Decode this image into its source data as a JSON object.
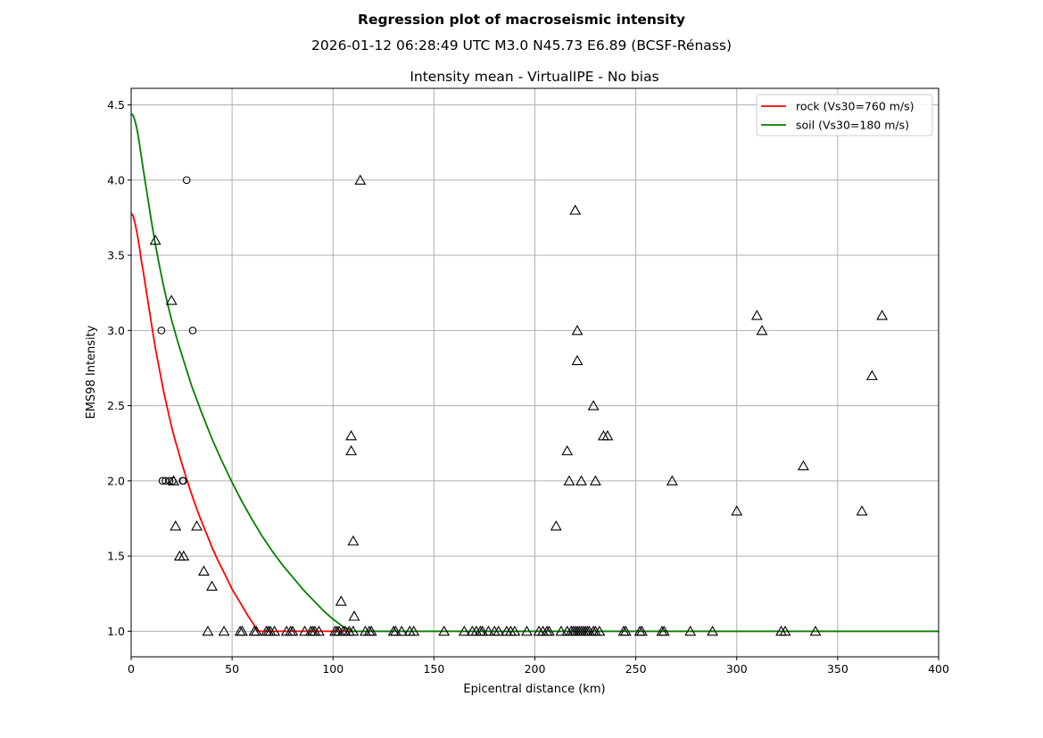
{
  "header": {
    "title": "Regression plot of macroseismic intensity",
    "subtitle": "2026-01-12 06:28:49 UTC M3.0 N45.73 E6.89 (BCSF-Rénass)"
  },
  "chart_data": {
    "type": "scatter",
    "title": "Intensity mean - VirtualIPE - No bias",
    "xlabel": "Epicentral distance (km)",
    "ylabel": "EMS98 Intensity",
    "xlim": [
      0,
      400
    ],
    "ylim": [
      0.83,
      4.61
    ],
    "xticks": [
      "0",
      "50",
      "100",
      "150",
      "200",
      "250",
      "300",
      "350",
      "400"
    ],
    "yticks": [
      "1.0",
      "1.5",
      "2.0",
      "2.5",
      "3.0",
      "3.5",
      "4.0",
      "4.5"
    ],
    "grid": true,
    "legend_position": "top-right",
    "series": [
      {
        "name": "rock (Vs30=760 m/s)",
        "kind": "line",
        "color": "#ff0000",
        "x": [
          0,
          1,
          2,
          3,
          4,
          5,
          6,
          8,
          10,
          12,
          14,
          16,
          18,
          20,
          22,
          25,
          28,
          31,
          34,
          37,
          40,
          43,
          46,
          50,
          54,
          58,
          62,
          63,
          70,
          100,
          200,
          300,
          400
        ],
        "y": [
          3.78,
          3.76,
          3.71,
          3.64,
          3.56,
          3.47,
          3.39,
          3.22,
          3.05,
          2.88,
          2.74,
          2.6,
          2.48,
          2.36,
          2.26,
          2.12,
          1.99,
          1.87,
          1.76,
          1.66,
          1.56,
          1.47,
          1.39,
          1.28,
          1.19,
          1.1,
          1.02,
          1.0,
          1.0,
          1.0,
          1.0,
          1.0,
          1.0
        ]
      },
      {
        "name": "soil (Vs30=180 m/s)",
        "kind": "line",
        "color": "#008000",
        "x": [
          0,
          1,
          2,
          3,
          4,
          5,
          6,
          8,
          10,
          12,
          14,
          16,
          18,
          20,
          23,
          26,
          30,
          35,
          40,
          45,
          50,
          55,
          60,
          65,
          70,
          75,
          80,
          85,
          90,
          95,
          100,
          105,
          110,
          120,
          200,
          300,
          400
        ],
        "y": [
          4.44,
          4.43,
          4.39,
          4.33,
          4.25,
          4.16,
          4.07,
          3.9,
          3.73,
          3.57,
          3.43,
          3.3,
          3.18,
          3.07,
          2.93,
          2.8,
          2.63,
          2.45,
          2.28,
          2.13,
          1.99,
          1.86,
          1.74,
          1.63,
          1.53,
          1.44,
          1.36,
          1.28,
          1.21,
          1.14,
          1.08,
          1.03,
          1.0,
          1.0,
          1.0,
          1.0,
          1.0
        ]
      },
      {
        "name": "",
        "kind": "markers",
        "marker": "circle",
        "x": [
          27.5,
          30.5,
          15,
          15.5,
          17,
          19,
          20.5,
          25.5,
          25.8
        ],
        "y": [
          4.0,
          3.0,
          3.0,
          2.0,
          2.0,
          2.0,
          2.0,
          2.0,
          2.0
        ]
      },
      {
        "name": "",
        "kind": "markers",
        "marker": "triangle",
        "x": [
          12,
          20,
          21,
          22,
          24,
          26,
          32.5,
          36,
          40,
          38,
          46,
          54,
          55,
          61,
          62,
          67,
          68,
          69,
          71,
          77,
          79,
          80,
          86,
          89,
          90,
          91,
          93,
          101,
          102,
          103,
          105,
          106,
          108,
          110,
          116,
          118,
          119,
          130,
          131,
          134,
          138,
          140,
          155,
          165,
          169,
          171,
          173,
          174,
          177,
          180,
          182,
          186,
          188,
          190,
          196,
          202,
          204,
          206,
          207,
          213,
          216,
          218,
          219,
          220,
          221,
          222,
          223,
          224,
          225,
          226,
          227,
          229,
          230,
          232,
          244,
          245,
          252,
          253,
          263,
          264,
          277,
          288,
          322,
          324,
          339,
          113.5,
          109,
          109,
          110,
          104,
          110.5,
          220,
          221,
          221,
          216,
          217,
          223,
          229,
          230,
          234,
          236,
          210.5,
          268,
          300,
          310,
          312.5,
          333,
          362,
          367,
          372
        ],
        "y": [
          3.6,
          3.2,
          2.0,
          1.7,
          1.5,
          1.5,
          1.7,
          1.4,
          1.3,
          1.0,
          1.0,
          1.0,
          1.0,
          1.0,
          1.0,
          1.0,
          1.0,
          1.0,
          1.0,
          1.0,
          1.0,
          1.0,
          1.0,
          1.0,
          1.0,
          1.0,
          1.0,
          1.0,
          1.0,
          1.0,
          1.0,
          1.0,
          1.0,
          1.0,
          1.0,
          1.0,
          1.0,
          1.0,
          1.0,
          1.0,
          1.0,
          1.0,
          1.0,
          1.0,
          1.0,
          1.0,
          1.0,
          1.0,
          1.0,
          1.0,
          1.0,
          1.0,
          1.0,
          1.0,
          1.0,
          1.0,
          1.0,
          1.0,
          1.0,
          1.0,
          1.0,
          1.0,
          1.0,
          1.0,
          1.0,
          1.0,
          1.0,
          1.0,
          1.0,
          1.0,
          1.0,
          1.0,
          1.0,
          1.0,
          1.0,
          1.0,
          1.0,
          1.0,
          1.0,
          1.0,
          1.0,
          1.0,
          1.0,
          1.0,
          1.0,
          4.0,
          2.3,
          2.2,
          1.6,
          1.2,
          1.1,
          3.8,
          3.0,
          2.8,
          2.2,
          2.0,
          2.0,
          2.5,
          2.0,
          2.3,
          2.3,
          1.7,
          2.0,
          1.8,
          3.1,
          3.0,
          2.1,
          1.8,
          2.7,
          3.1
        ]
      }
    ]
  }
}
